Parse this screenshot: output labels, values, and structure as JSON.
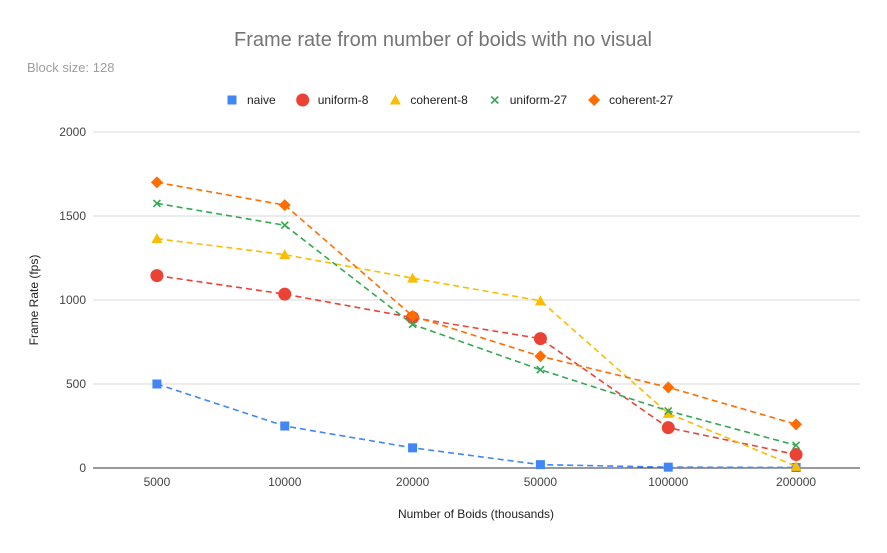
{
  "chart_data": {
    "type": "line",
    "title": "Frame rate from number of boids with no visual",
    "subtitle": "Block size: 128",
    "xlabel": "Number of Boids (thousands)",
    "ylabel": "Frame Rate (fps)",
    "categories": [
      "5000",
      "10000",
      "20000",
      "50000",
      "100000",
      "200000"
    ],
    "ylim": [
      0,
      2000
    ],
    "yticks": [
      0,
      500,
      1000,
      1500,
      2000
    ],
    "grid": true,
    "legend_position": "top",
    "line_style": "dashed",
    "series": [
      {
        "name": "naive",
        "color": "#4285f4",
        "marker": "square",
        "values": [
          500,
          250,
          120,
          20,
          5,
          3
        ]
      },
      {
        "name": "uniform-8",
        "color": "#ea4335",
        "marker": "circle",
        "values": [
          1145,
          1035,
          895,
          770,
          240,
          80
        ]
      },
      {
        "name": "coherent-8",
        "color": "#fbbc04",
        "marker": "triangle",
        "values": [
          1365,
          1270,
          1130,
          995,
          325,
          10
        ]
      },
      {
        "name": "uniform-27",
        "color": "#34a853",
        "marker": "x",
        "values": [
          1575,
          1445,
          855,
          585,
          340,
          135
        ]
      },
      {
        "name": "coherent-27",
        "color": "#ff6d01",
        "marker": "diamond",
        "values": [
          1700,
          1565,
          905,
          665,
          480,
          260
        ]
      }
    ]
  }
}
